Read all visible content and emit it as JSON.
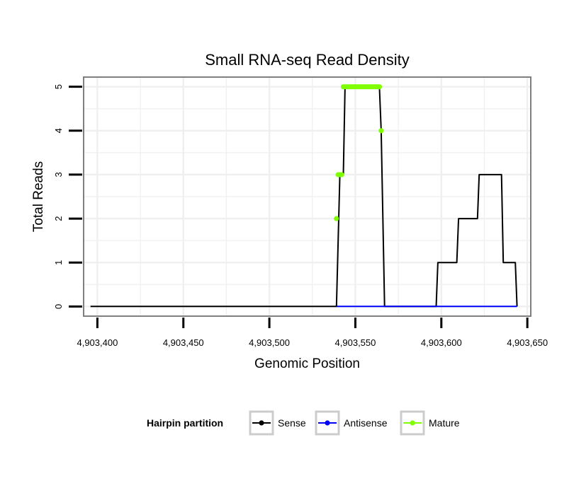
{
  "chart_data": {
    "type": "line",
    "title": "Small RNA-seq Read Density",
    "xlabel": "Genomic Position",
    "ylabel": "Total Reads",
    "xlim": [
      4903392,
      4903652
    ],
    "ylim": [
      -0.22,
      5.22
    ],
    "x_ticks": [
      4903400,
      4903450,
      4903500,
      4903550,
      4903600,
      4903650
    ],
    "x_tick_labels": [
      "4,903,400",
      "4,903,450",
      "4,903,500",
      "4,903,550",
      "4,903,600",
      "4,903,650"
    ],
    "y_ticks": [
      0,
      1,
      2,
      3,
      4,
      5
    ],
    "y_tick_labels": [
      "0",
      "1",
      "2",
      "3",
      "4",
      "5"
    ],
    "grid": true,
    "legend": {
      "title": "Hairpin partition",
      "position": "bottom",
      "entries": [
        "Sense",
        "Antisense",
        "Mature"
      ]
    },
    "series": [
      {
        "name": "Sense",
        "color": "#000000",
        "show_points": false,
        "x": [
          4903396,
          4903539,
          4903541,
          4903543,
          4903544,
          4903564,
          4903565,
          4903567,
          4903597,
          4903598,
          4903609,
          4903610,
          4903621,
          4903622,
          4903635,
          4903636,
          4903643,
          4903644
        ],
        "y": [
          0,
          0,
          3,
          3,
          5,
          5,
          4,
          0,
          0,
          1,
          1,
          2,
          2,
          3,
          3,
          1,
          1,
          0
        ]
      },
      {
        "name": "Antisense",
        "color": "#0000ff",
        "show_points": false,
        "x": [
          4903539,
          4903644
        ],
        "y": [
          0,
          0
        ]
      },
      {
        "name": "Mature",
        "color": "#7fff00",
        "show_points": true,
        "x": [
          4903539,
          4903540,
          4903541,
          4903542,
          4903543,
          4903544,
          4903545,
          4903546,
          4903547,
          4903548,
          4903549,
          4903550,
          4903551,
          4903552,
          4903553,
          4903554,
          4903555,
          4903556,
          4903557,
          4903558,
          4903559,
          4903560,
          4903561,
          4903562,
          4903563,
          4903564,
          4903565
        ],
        "y": [
          2,
          3,
          3,
          3,
          5,
          5,
          5,
          5,
          5,
          5,
          5,
          5,
          5,
          5,
          5,
          5,
          5,
          5,
          5,
          5,
          5,
          5,
          5,
          5,
          5,
          5,
          4
        ]
      }
    ]
  }
}
